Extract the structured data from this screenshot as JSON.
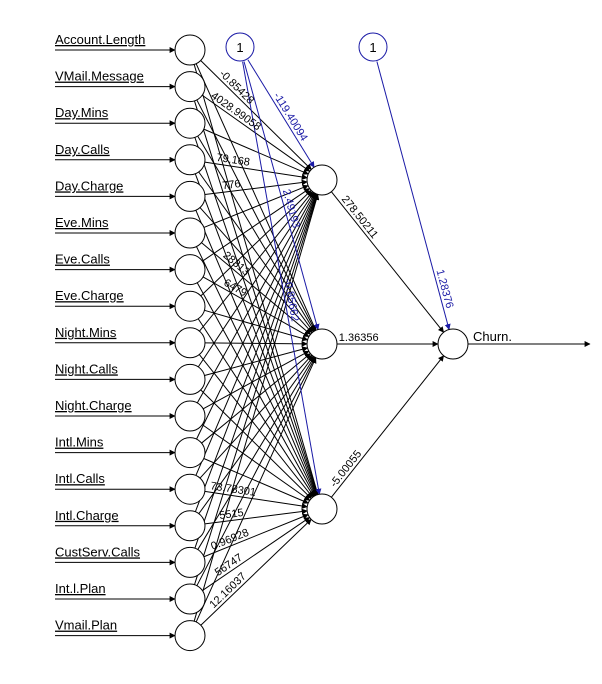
{
  "inputs": [
    {
      "label": "Account.Length"
    },
    {
      "label": "VMail.Message"
    },
    {
      "label": "Day.Mins"
    },
    {
      "label": "Day.Calls"
    },
    {
      "label": "Day.Charge"
    },
    {
      "label": "Eve.Mins"
    },
    {
      "label": "Eve.Calls"
    },
    {
      "label": "Eve.Charge"
    },
    {
      "label": "Night.Mins"
    },
    {
      "label": "Night.Calls"
    },
    {
      "label": "Night.Charge"
    },
    {
      "label": "Intl.Mins"
    },
    {
      "label": "Intl.Calls"
    },
    {
      "label": "Intl.Charge"
    },
    {
      "label": "CustServ.Calls"
    },
    {
      "label": "Int.l.Plan"
    },
    {
      "label": "Vmail.Plan"
    }
  ],
  "output": {
    "label": "Churn."
  },
  "bias_label": "1",
  "hidden_bias_weights": [
    "-119.40094",
    "2.49193",
    "-0.85662"
  ],
  "hidden_output_weights": [
    "278.50211",
    "1.36356",
    "-5.00055"
  ],
  "output_bias_weight": "1.28376",
  "input_weight_labels": [
    {
      "hidden": 0,
      "input": 1,
      "text": "-0.85428"
    },
    {
      "hidden": 0,
      "input": 2,
      "text": "4028.99058"
    },
    {
      "hidden": 0,
      "input": 4,
      "text": "79.168"
    },
    {
      "hidden": 0,
      "input": 5,
      "text": "776"
    },
    {
      "hidden": 1,
      "input": 6,
      "text": "28313"
    },
    {
      "hidden": 1,
      "input": 7,
      "text": "6479"
    },
    {
      "hidden": 2,
      "input": 13,
      "text": "73.78301"
    },
    {
      "hidden": 2,
      "input": 14,
      "text": "5515"
    },
    {
      "hidden": 2,
      "input": 15,
      "text": "0.96928"
    },
    {
      "hidden": 2,
      "input": 16,
      "text": "56747"
    },
    {
      "hidden": 2,
      "input": 17,
      "text": "12.16037"
    }
  ],
  "colors": {
    "node_stroke": "#000000",
    "edge": "#000000",
    "bias_edge": "#1a1aa6",
    "bias_text": "#1a1aa6"
  }
}
